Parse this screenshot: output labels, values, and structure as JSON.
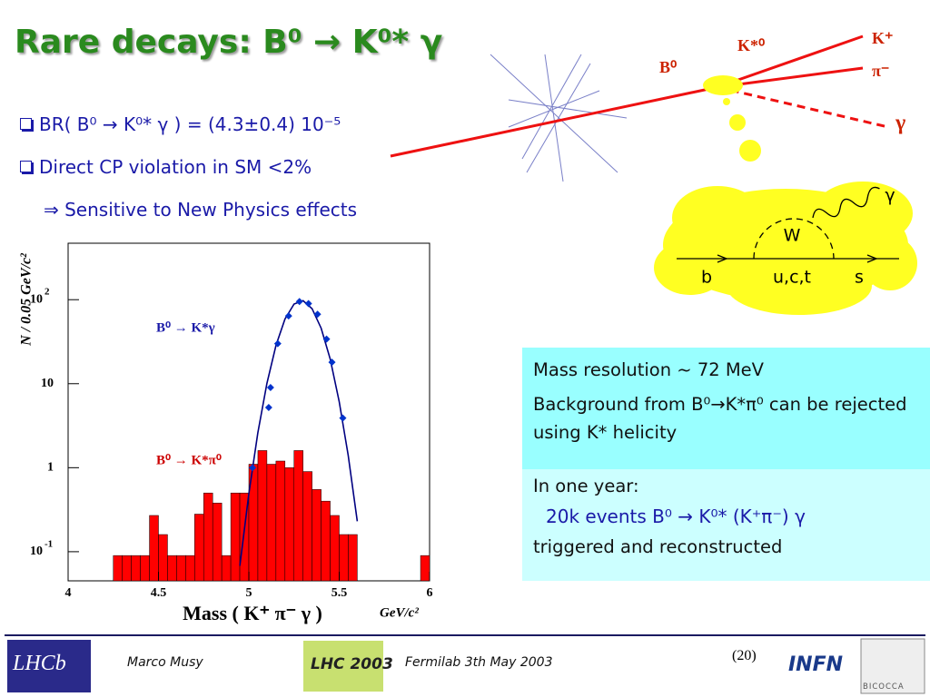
{
  "title": "Rare decays: B⁰ → K⁰* γ",
  "bullets": [
    "BR( B⁰ → K⁰* γ ) = (4.3±0.4) 10⁻⁵",
    "Direct CP violation in SM <2%",
    "⇒ Sensitive to New Physics effects"
  ],
  "event_display": {
    "labels": [
      "K*⁰",
      "K⁺",
      "π⁻",
      "B⁰",
      "γ"
    ]
  },
  "feynman": {
    "photon": "γ",
    "boson": "W",
    "quark_in": "b",
    "loop": "u,c,t",
    "quark_out": "s"
  },
  "box1": {
    "lines": [
      "Mass resolution  ~ 72 MeV",
      "Background from B⁰→K*π⁰  can be rejected using K* helicity"
    ]
  },
  "box2": {
    "lines": [
      "In one year:",
      "20k events B⁰ → K⁰* (K⁺π⁻) γ",
      "triggered and reconstructed"
    ]
  },
  "plot": {
    "type": "histogram",
    "ylabel": "N / 0.05 GeV/c²",
    "xlabel": "Mass ( K⁺ π⁻ γ )",
    "xunit": "GeV/c²",
    "annotations": [
      "B⁰ → K*γ",
      "B⁰ → K*π⁰"
    ],
    "log_y": true,
    "xlim": [
      4,
      6
    ],
    "ylim": [
      0.045,
      470
    ],
    "xticks": [
      4,
      4.5,
      5,
      5.5,
      6
    ],
    "yticks": [
      {
        "value": 100,
        "label": "10",
        "exponent": "2"
      },
      {
        "value": 10,
        "label": "10"
      },
      {
        "value": 1,
        "label": "1"
      },
      {
        "value": 0.1,
        "label": "10",
        "exponent": "-1"
      }
    ],
    "histogram": {
      "color": "#ff0000",
      "bins": [
        4.25,
        4.3,
        4.35,
        4.4,
        4.45,
        4.5,
        4.55,
        4.6,
        4.65,
        4.7,
        4.75,
        4.8,
        4.85,
        4.9,
        4.95,
        5,
        5.05,
        5.1,
        5.15,
        5.2,
        5.25,
        5.3,
        5.35,
        5.4,
        5.45,
        5.5,
        5.55,
        5.6,
        5.65,
        5.7,
        5.75,
        5.8,
        5.85,
        5.9,
        5.95,
        6
      ],
      "counts": [
        0.09,
        0.09,
        0.09,
        0.09,
        0.27,
        0.16,
        0.09,
        0.09,
        0.09,
        0.28,
        0.5,
        0.38,
        0.09,
        0.5,
        0.5,
        1.1,
        1.6,
        1.1,
        1.2,
        1.0,
        1.6,
        0.9,
        0.55,
        0.4,
        0.27,
        0.16,
        0.16,
        0,
        0,
        0,
        0,
        0,
        0,
        0,
        0.09
      ]
    },
    "points": {
      "color": "#0033cc",
      "x": [
        5.02,
        5.11,
        5.12,
        5.16,
        5.22,
        5.28,
        5.33,
        5.38,
        5.43,
        5.46,
        5.52
      ],
      "values": [
        1,
        5.2,
        9,
        30,
        64,
        95,
        90,
        67,
        34,
        18,
        3.9
      ]
    },
    "fit": {
      "color": "#000080",
      "x": [
        4.95,
        5,
        5.05,
        5.1,
        5.15,
        5.2,
        5.25,
        5.3,
        5.35,
        5.4,
        5.45,
        5.5,
        5.55,
        5.6
      ],
      "values": [
        0.068,
        0.49,
        2.6,
        10.1,
        28.6,
        58.9,
        88.7,
        97.4,
        78.1,
        45.8,
        19.6,
        6.1,
        1.4,
        0.23
      ]
    }
  },
  "footer": {
    "author": "Marco Musy",
    "event": "Fermilab 3th May 2003",
    "page": "(20)",
    "logos": [
      "LHCb",
      "LHC 2003",
      "INFN",
      "BICOCCA"
    ]
  }
}
